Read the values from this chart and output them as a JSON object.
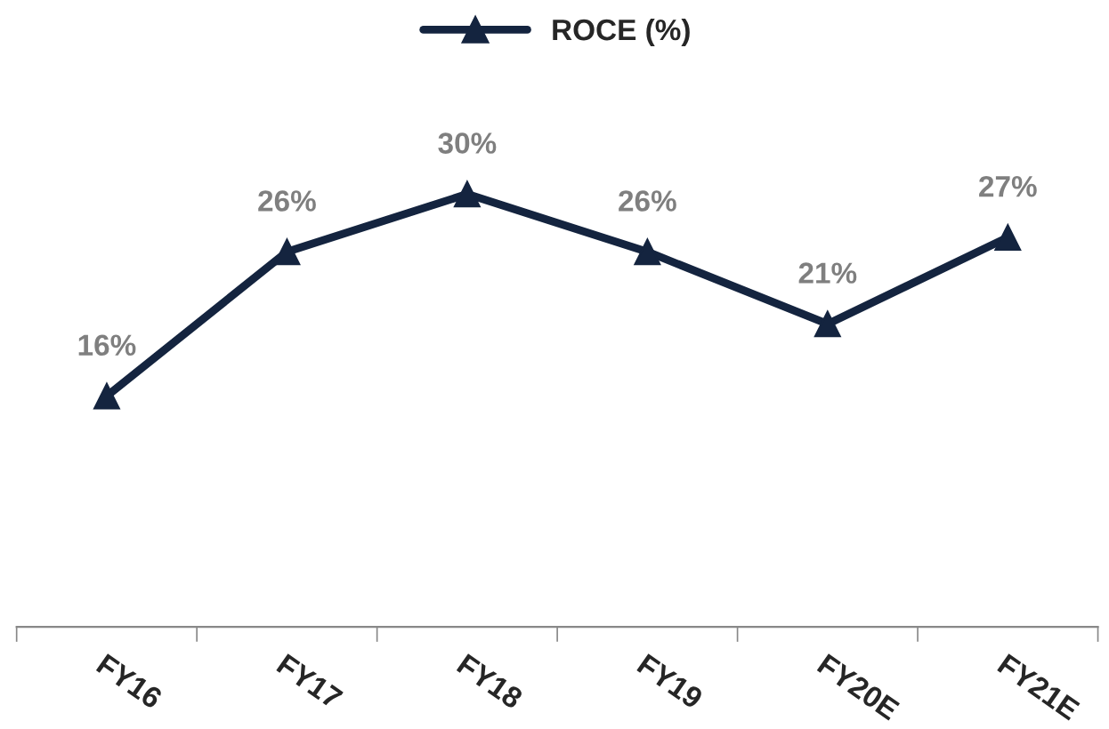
{
  "chart_data": {
    "type": "line",
    "categories": [
      "FY16",
      "FY17",
      "FY18",
      "FY19",
      "FY20E",
      "FY21E"
    ],
    "series": [
      {
        "name": "ROCE (%)",
        "color": "#14243f",
        "values": [
          16,
          26,
          30,
          26,
          21,
          27
        ],
        "value_labels": [
          "16%",
          "26%",
          "30%",
          "26%",
          "21%",
          "27%"
        ]
      }
    ],
    "marker": "triangle",
    "line_style": "solid",
    "legend": "top"
  }
}
